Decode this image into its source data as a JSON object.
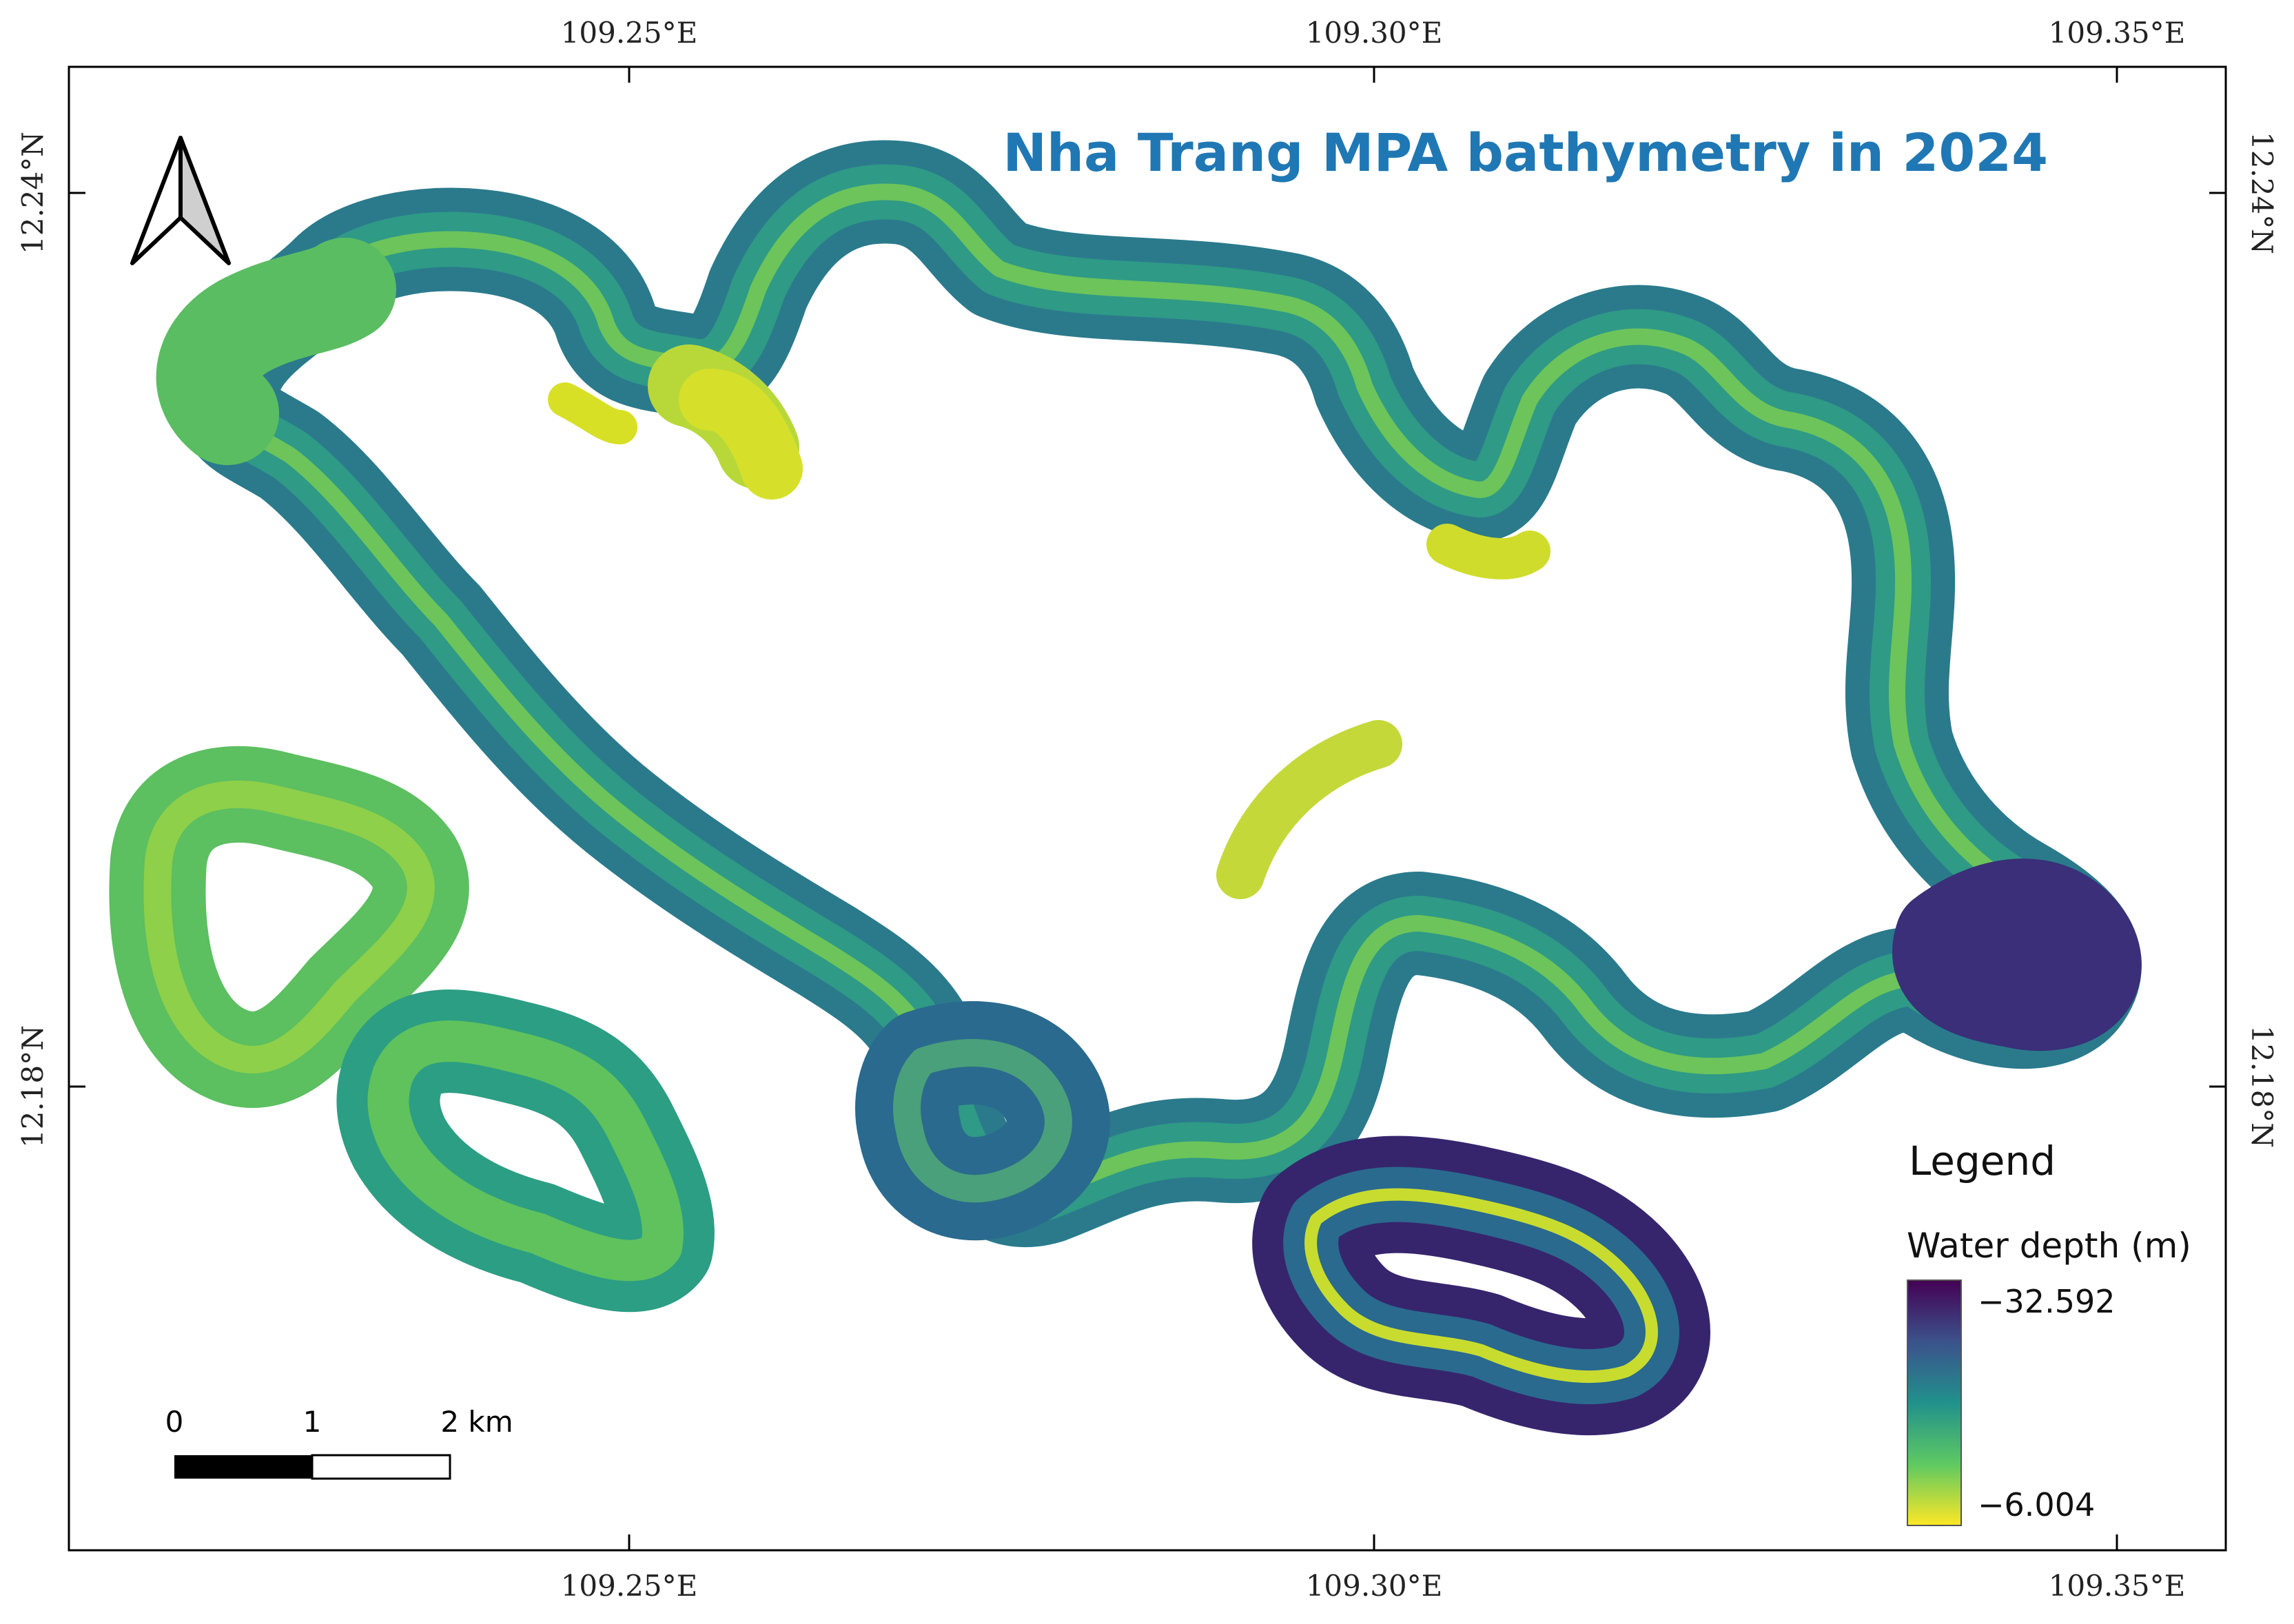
{
  "title": "Nha Trang MPA bathymetry in 2024",
  "graticule": {
    "lon_labels": [
      "109.25°E",
      "109.30°E",
      "109.35°E"
    ],
    "lat_labels": [
      "12.24°N",
      "12.18°N"
    ]
  },
  "north_arrow": {
    "icon": "north-arrow-icon"
  },
  "scale_bar": {
    "ticks": [
      "0",
      "1",
      "2 km"
    ]
  },
  "legend": {
    "heading": "Legend",
    "layer_title": "Water depth (m)",
    "max_label": "−32.592",
    "min_label": "−6.004",
    "ramp": "viridis",
    "colors": [
      "#440154",
      "#3b528b",
      "#21918c",
      "#5ec962",
      "#fde725"
    ]
  },
  "colors": {
    "title": "#1f78b4",
    "deep": "#3a1a6b",
    "mid_deep": "#2a6a8e",
    "mid": "#2a8c8a",
    "shallow": "#5cc25f",
    "very_shallow": "#e4e418",
    "frame": "#000000"
  }
}
